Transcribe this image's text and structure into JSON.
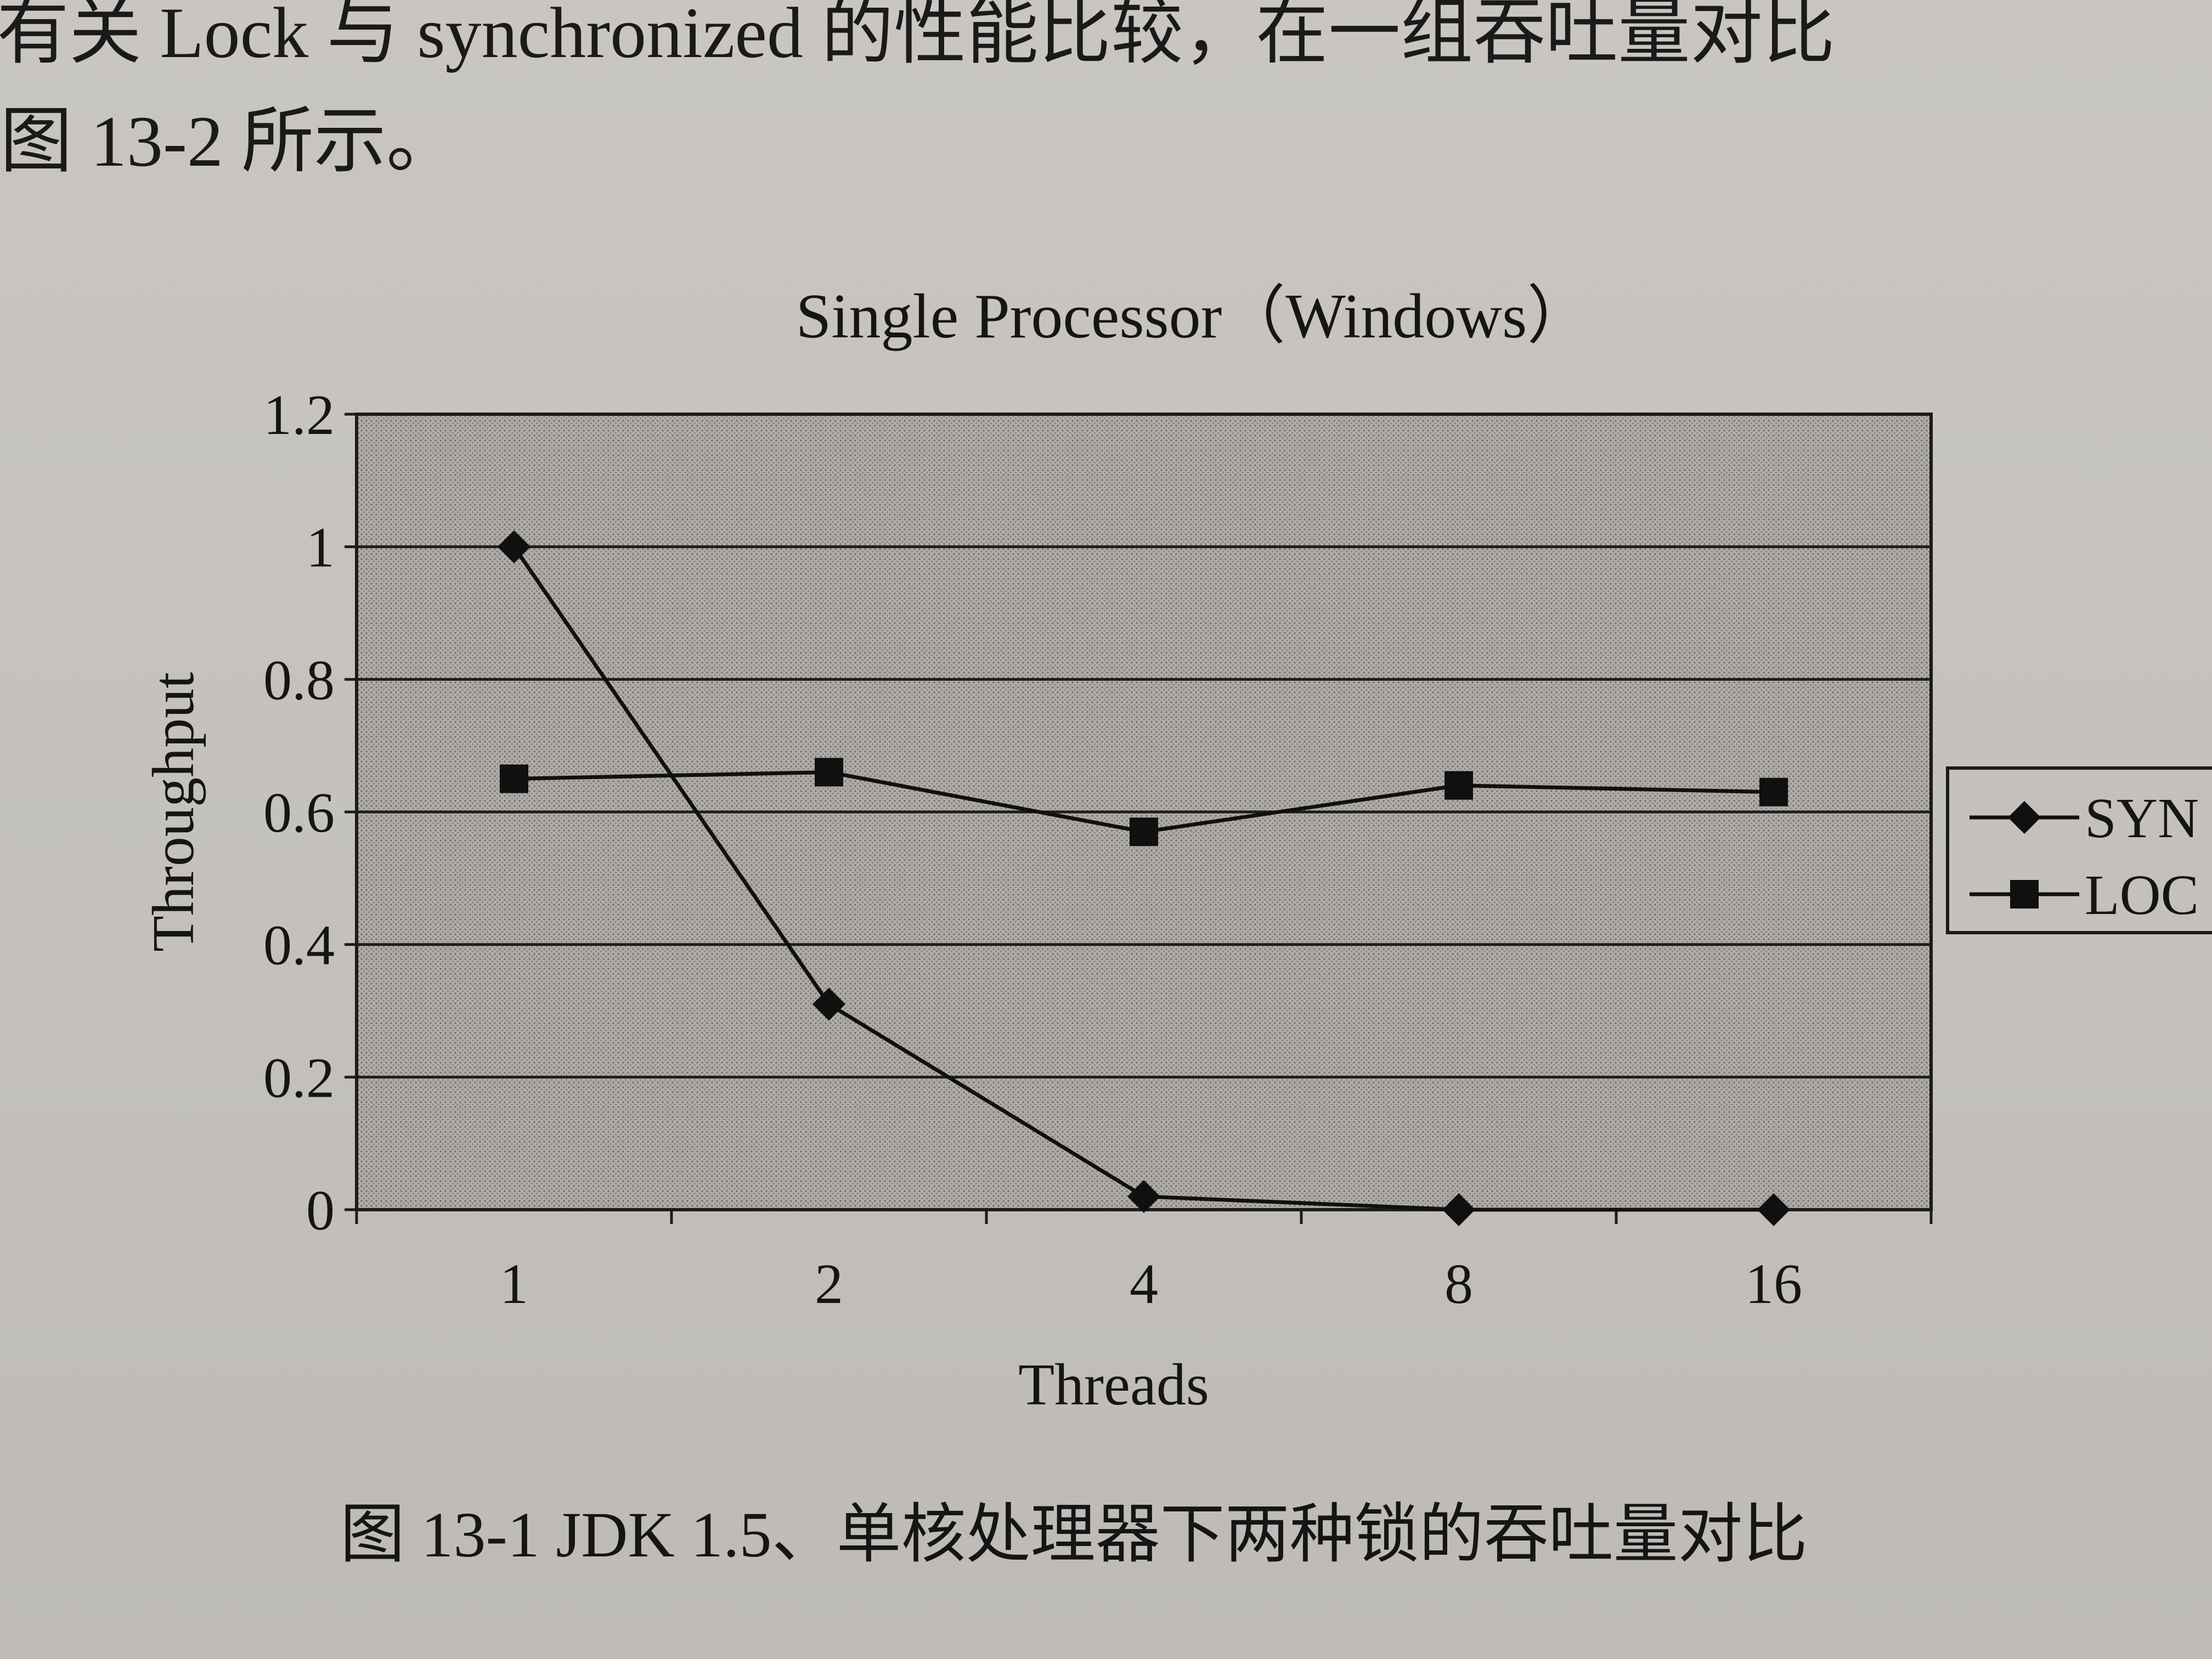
{
  "page": {
    "top_line": "有关 Lock 与 synchronized 的性能比较，在一组吞吐量对比",
    "second_line": "图 13-2 所示。",
    "caption": "图 13-1    JDK 1.5、单核处理器下两种锁的吞吐量对比"
  },
  "colors": {
    "plot_background": "#a8a5a1",
    "gridline": "#1c1c1c",
    "series_line": "#101010",
    "page": "#c7c4c0"
  },
  "chart_data": {
    "type": "line",
    "title": "Single Processor（Windows）",
    "xlabel": "Threads",
    "ylabel": "Throughput",
    "categories": [
      "1",
      "2",
      "4",
      "8",
      "16"
    ],
    "ylim": [
      0,
      1.2
    ],
    "yticks": [
      "0",
      "0.2",
      "0.4",
      "0.6",
      "0.8",
      "1",
      "1.2"
    ],
    "grid": true,
    "legend_position": "right",
    "series": [
      {
        "name": "SYN",
        "marker": "diamond",
        "values": [
          1.0,
          0.31,
          0.02,
          0.0,
          0.0
        ]
      },
      {
        "name": "LOC",
        "marker": "square",
        "values": [
          0.65,
          0.66,
          0.57,
          0.64,
          0.63
        ]
      }
    ]
  }
}
